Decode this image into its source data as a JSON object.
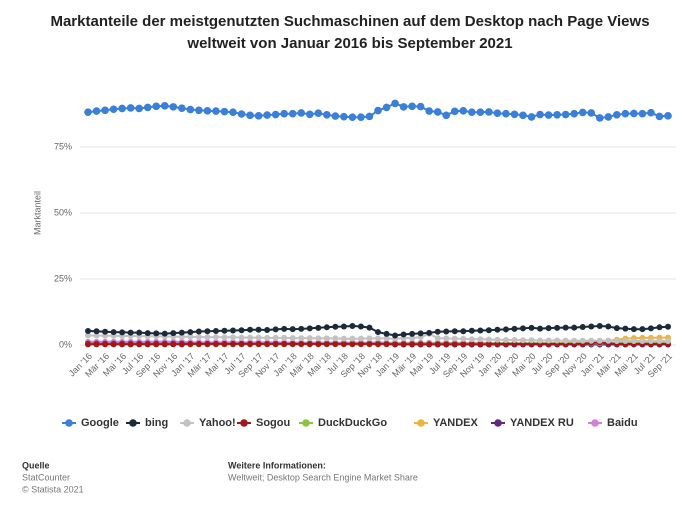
{
  "chart_data": {
    "type": "line",
    "title": [
      "Marktanteile der meistgenutzten Suchmaschinen auf dem Desktop nach Page Views",
      "weltweit von Januar 2016 bis September 2021"
    ],
    "y_label": "Marktanteil",
    "categories": [
      "Jan '16",
      null,
      "Mär '16",
      null,
      "Mai '16",
      null,
      "Jul '16",
      null,
      "Sep '16",
      null,
      "Nov '16",
      null,
      "Jan '17",
      null,
      "Mär '17",
      null,
      "Mai '17",
      null,
      "Jul '17",
      null,
      "Sep '17",
      null,
      "Nov '17",
      null,
      "Jan '18",
      null,
      "Mär '18",
      null,
      "Mai '18",
      null,
      "Jul '18",
      null,
      "Sep '18",
      null,
      "Nov '18",
      null,
      "Jan '19",
      null,
      "Mär '19",
      null,
      "Mai '19",
      null,
      "Jul '19",
      null,
      "Sep '19",
      null,
      "Nov '19",
      null,
      "Jan '20",
      null,
      "Mär '20",
      null,
      "Mai '20",
      null,
      "Jul '20",
      null,
      "Sep '20",
      null,
      "Nov '20",
      null,
      "Jan '21",
      null,
      "Mär '21",
      null,
      "Mai '21",
      null,
      "Jul '21",
      null,
      "Sep '21"
    ],
    "ylim": [
      0,
      100
    ],
    "yticks": [
      {
        "value": 0,
        "label": "0%"
      },
      {
        "value": 25,
        "label": "25%"
      },
      {
        "value": 50,
        "label": "50%"
      },
      {
        "value": 75,
        "label": "75%"
      }
    ],
    "grid": true,
    "legend": "bottom",
    "series": [
      {
        "name": "Google",
        "color": "#3a7fd9",
        "values": [
          88.2,
          88.6,
          88.9,
          89.3,
          89.6,
          89.8,
          89.6,
          90.0,
          90.4,
          90.6,
          90.2,
          89.7,
          89.2,
          88.9,
          88.7,
          88.6,
          88.4,
          88.2,
          87.5,
          87.0,
          86.8,
          87.1,
          87.3,
          87.6,
          87.6,
          87.9,
          87.4,
          87.8,
          87.2,
          86.7,
          86.5,
          86.3,
          86.3,
          86.6,
          88.8,
          90.0,
          91.5,
          90.2,
          90.4,
          90.3,
          88.6,
          88.3,
          87.0,
          88.5,
          88.7,
          88.2,
          88.2,
          88.3,
          87.8,
          87.6,
          87.4,
          87.0,
          86.4,
          87.3,
          87.1,
          87.2,
          87.3,
          87.6,
          88.1,
          87.9,
          86.0,
          86.4,
          87.2,
          87.6,
          87.7,
          87.6,
          88.0,
          86.6,
          86.8
        ]
      },
      {
        "name": "bing",
        "color": "#1b2a3a",
        "values": [
          5.3,
          5.2,
          5.0,
          4.9,
          4.8,
          4.7,
          4.7,
          4.5,
          4.4,
          4.3,
          4.5,
          4.7,
          4.9,
          5.1,
          5.2,
          5.3,
          5.4,
          5.5,
          5.6,
          5.8,
          5.8,
          5.7,
          5.9,
          6.1,
          6.0,
          6.1,
          6.3,
          6.5,
          6.7,
          6.9,
          7.0,
          7.2,
          7.0,
          6.6,
          4.9,
          4.2,
          3.6,
          4.0,
          4.2,
          4.4,
          4.6,
          5.0,
          5.1,
          5.2,
          5.2,
          5.4,
          5.5,
          5.6,
          5.8,
          5.9,
          6.1,
          6.3,
          6.5,
          6.2,
          6.4,
          6.5,
          6.6,
          6.6,
          6.8,
          7.0,
          7.2,
          7.0,
          6.4,
          6.2,
          6.0,
          6.0,
          6.3,
          6.7,
          6.9
        ]
      },
      {
        "name": "Yahoo!",
        "color": "#c2c2c2",
        "values": [
          3.6,
          3.6,
          3.5,
          3.5,
          3.4,
          3.4,
          3.4,
          3.3,
          3.3,
          3.2,
          3.2,
          3.1,
          3.1,
          3.0,
          3.0,
          3.0,
          2.9,
          2.9,
          2.8,
          2.8,
          2.8,
          2.7,
          2.7,
          2.7,
          2.6,
          2.6,
          2.6,
          2.5,
          2.5,
          2.5,
          2.4,
          2.4,
          2.4,
          2.5,
          2.5,
          2.5,
          2.4,
          2.6,
          2.6,
          3.0,
          4.2,
          2.6,
          2.5,
          2.4,
          2.3,
          2.2,
          2.2,
          2.1,
          2.0,
          1.9,
          1.9,
          1.8,
          1.8,
          1.7,
          1.7,
          1.7,
          1.6,
          1.6,
          1.6,
          1.6,
          1.6,
          1.6,
          1.5,
          1.5,
          1.5,
          1.5,
          1.5,
          1.5,
          1.5
        ]
      },
      {
        "name": "Sogou",
        "color": "#a3161a",
        "values": [
          0.3,
          0.3,
          0.3,
          0.3,
          0.3,
          0.3,
          0.3,
          0.3,
          0.3,
          0.3,
          0.3,
          0.3,
          0.4,
          0.4,
          0.4,
          0.4,
          0.4,
          0.4,
          0.4,
          0.4,
          0.4,
          0.4,
          0.4,
          0.4,
          0.4,
          0.4,
          0.4,
          0.4,
          0.4,
          0.4,
          0.4,
          0.4,
          0.4,
          0.4,
          0.4,
          0.4,
          0.3,
          0.3,
          0.3,
          0.3,
          0.3,
          0.3,
          0.3,
          0.3,
          0.3,
          0.3,
          0.3,
          0.3,
          0.4,
          0.4,
          0.4,
          0.4,
          0.4,
          0.4,
          0.4,
          0.4,
          0.4,
          0.4,
          0.4,
          0.8,
          1.0,
          0.6,
          0.4,
          0.4,
          0.4,
          0.4,
          0.4,
          0.4,
          0.4
        ]
      },
      {
        "name": "DuckDuckGo",
        "color": "#8cc43f",
        "values": [
          0.3,
          0.3,
          0.3,
          0.3,
          0.3,
          0.3,
          0.3,
          0.3,
          0.3,
          0.3,
          0.3,
          0.3,
          0.3,
          0.3,
          0.3,
          0.3,
          0.3,
          0.3,
          0.3,
          0.3,
          0.3,
          0.3,
          0.3,
          0.3,
          0.4,
          0.4,
          0.4,
          0.4,
          0.4,
          0.4,
          0.4,
          0.4,
          0.4,
          0.4,
          0.4,
          0.4,
          0.5,
          0.5,
          0.5,
          0.5,
          0.5,
          0.5,
          0.5,
          0.5,
          0.5,
          0.5,
          0.5,
          0.5,
          0.6,
          0.6,
          0.6,
          0.6,
          0.6,
          0.6,
          0.6,
          0.6,
          0.6,
          0.6,
          0.6,
          0.6,
          0.7,
          0.7,
          0.7,
          0.7,
          0.7,
          0.7,
          0.7,
          0.7,
          0.7
        ]
      },
      {
        "name": "YANDEX",
        "color": "#f1b43a",
        "values": [
          0.2,
          0.2,
          0.2,
          0.2,
          0.2,
          0.2,
          0.2,
          0.2,
          0.2,
          0.2,
          0.2,
          0.2,
          0.2,
          0.2,
          0.2,
          0.2,
          0.2,
          0.2,
          0.2,
          0.2,
          0.2,
          0.2,
          0.2,
          0.2,
          0.3,
          0.3,
          0.3,
          0.3,
          0.3,
          0.3,
          0.3,
          0.3,
          0.3,
          0.3,
          0.3,
          0.3,
          0.4,
          0.4,
          0.4,
          0.4,
          0.4,
          0.4,
          0.4,
          0.4,
          0.4,
          0.4,
          0.4,
          0.4,
          0.6,
          0.6,
          0.6,
          0.6,
          0.6,
          0.6,
          0.6,
          0.6,
          0.8,
          0.9,
          1.0,
          1.0,
          1.4,
          1.6,
          2.0,
          2.4,
          2.6,
          2.7,
          2.7,
          2.8,
          2.8
        ]
      },
      {
        "name": "YANDEX RU",
        "color": "#5b2a7e",
        "values": [
          0.5,
          0.5,
          0.5,
          0.5,
          0.5,
          0.5,
          0.5,
          0.5,
          0.5,
          0.5,
          0.5,
          0.5,
          0.4,
          0.4,
          0.4,
          0.4,
          0.4,
          0.4,
          0.4,
          0.4,
          0.4,
          0.4,
          0.4,
          0.4,
          0.3,
          0.3,
          0.3,
          0.3,
          0.3,
          0.3,
          0.3,
          0.3,
          0.3,
          0.3,
          0.3,
          0.3,
          0.2,
          0.2,
          0.2,
          0.2,
          0.2,
          0.2,
          0.2,
          0.2,
          0.2,
          0.2,
          0.2,
          0.2,
          0.2,
          0.2,
          0.2,
          0.2,
          0.2,
          0.2,
          0.2,
          0.2,
          0.2,
          0.2,
          0.2,
          0.2,
          0.2,
          0.2,
          0.2,
          0.2,
          0.2,
          0.2,
          0.2,
          0.2,
          0.2
        ]
      },
      {
        "name": "Baidu",
        "color": "#d27fdb",
        "values": [
          1.2,
          1.2,
          1.2,
          1.2,
          1.2,
          1.2,
          1.2,
          1.2,
          1.2,
          1.2,
          1.2,
          1.2,
          1.0,
          1.0,
          1.0,
          1.0,
          1.0,
          1.0,
          1.0,
          1.0,
          1.0,
          1.0,
          1.0,
          1.0,
          0.9,
          0.9,
          0.9,
          0.9,
          0.9,
          0.9,
          0.9,
          0.9,
          0.9,
          0.9,
          0.9,
          0.9,
          0.8,
          0.8,
          0.8,
          0.8,
          0.8,
          0.8,
          0.8,
          0.8,
          0.8,
          0.8,
          0.8,
          0.8,
          0.7,
          0.7,
          0.7,
          0.7,
          0.7,
          0.7,
          0.7,
          0.7,
          0.7,
          0.7,
          0.7,
          0.7,
          0.7,
          0.7,
          0.7,
          0.7,
          0.7,
          0.7,
          0.7,
          0.7,
          0.7
        ]
      }
    ]
  },
  "footer": {
    "source_heading": "Quelle",
    "source": "StatCounter",
    "copyright": "© Statista 2021",
    "info_heading": "Weitere Informationen:",
    "info": "Weltweit; Desktop Search Engine Market Share"
  }
}
